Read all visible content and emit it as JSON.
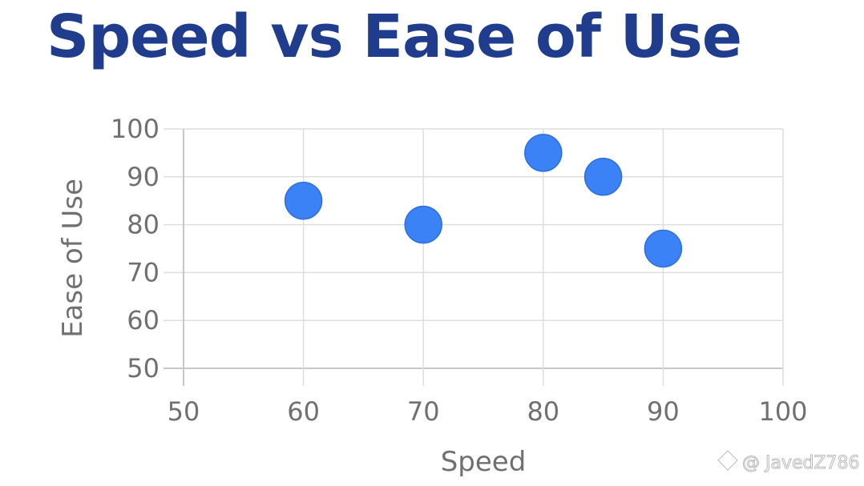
{
  "colors": {
    "title": "#1f3d8c",
    "point": "#3b82f6",
    "point_edge": "#2f6fd9",
    "grid": "#dedede",
    "axis": "#c8c8c8",
    "tick_text": "#707070"
  },
  "chart_data": {
    "type": "scatter",
    "title": "Speed vs Ease of Use",
    "xlabel": "Speed",
    "ylabel": "Ease of Use",
    "xlim": [
      50,
      100
    ],
    "ylim": [
      50,
      100
    ],
    "xticks": [
      50,
      60,
      70,
      80,
      90,
      100
    ],
    "yticks": [
      50,
      60,
      70,
      80,
      90,
      100
    ],
    "grid": true,
    "points": [
      {
        "x": 60,
        "y": 85
      },
      {
        "x": 70,
        "y": 80
      },
      {
        "x": 80,
        "y": 95
      },
      {
        "x": 85,
        "y": 90
      },
      {
        "x": 90,
        "y": 75
      }
    ]
  },
  "watermark": {
    "text": "@ JavedZ786",
    "icon": "watermark-logo-icon"
  }
}
